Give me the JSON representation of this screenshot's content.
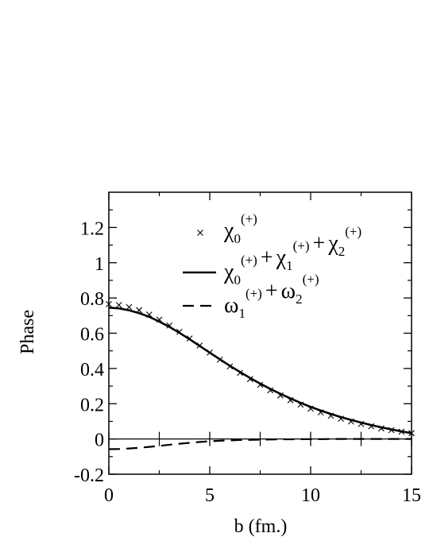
{
  "chart_data": {
    "type": "line",
    "xlabel": "b (fm.)",
    "ylabel": "Phase",
    "xlim": [
      0,
      15
    ],
    "ylim": [
      -0.2,
      1.4
    ],
    "x_ticks": [
      0,
      5,
      10,
      15
    ],
    "x_tick_labels": [
      "0",
      "5",
      "10",
      "15"
    ],
    "y_ticks": [
      -0.2,
      0,
      0.2,
      0.4,
      0.6,
      0.8,
      1,
      1.2
    ],
    "y_tick_labels": [
      "-0.2",
      "0",
      "0.2",
      "0.4",
      "0.6",
      "0.8",
      "1",
      "1.2"
    ],
    "grid": false,
    "zero_line": true,
    "legend_position": "top-right",
    "series": [
      {
        "name": "χ0(+)",
        "legend": [
          {
            "t": "χ",
            "s": "0",
            "p": "(+)"
          }
        ],
        "style": "cross-markers",
        "x": [
          0,
          0.5,
          1,
          1.5,
          2,
          2.5,
          3,
          3.5,
          4,
          4.5,
          5,
          5.5,
          6,
          6.5,
          7,
          7.5,
          8,
          8.5,
          9,
          9.5,
          10,
          10.5,
          11,
          11.5,
          12,
          12.5,
          13,
          13.5,
          14,
          14.5,
          15
        ],
        "y": [
          0.765,
          0.76,
          0.748,
          0.731,
          0.706,
          0.677,
          0.644,
          0.608,
          0.57,
          0.53,
          0.49,
          0.45,
          0.412,
          0.375,
          0.34,
          0.307,
          0.276,
          0.247,
          0.22,
          0.195,
          0.172,
          0.151,
          0.132,
          0.115,
          0.099,
          0.085,
          0.072,
          0.06,
          0.05,
          0.041,
          0.033
        ]
      },
      {
        "name": "χ0(+) + χ1(+) + χ2(+)",
        "legend": [
          {
            "t": "χ",
            "s": "0",
            "p": "(+)"
          },
          {
            "op": "+"
          },
          {
            "t": "χ",
            "s": "1",
            "p": "(+)"
          },
          {
            "op": "+"
          },
          {
            "t": "χ",
            "s": "2",
            "p": "(+)"
          }
        ],
        "style": "solid",
        "x": [
          0,
          0.5,
          1,
          1.5,
          2,
          2.5,
          3,
          3.5,
          4,
          4.5,
          5,
          5.5,
          6,
          6.5,
          7,
          7.5,
          8,
          8.5,
          9,
          9.5,
          10,
          10.5,
          11,
          11.5,
          12,
          12.5,
          13,
          13.5,
          14,
          14.5,
          15
        ],
        "y": [
          0.745,
          0.741,
          0.73,
          0.714,
          0.693,
          0.666,
          0.636,
          0.602,
          0.566,
          0.528,
          0.49,
          0.452,
          0.415,
          0.38,
          0.346,
          0.314,
          0.284,
          0.256,
          0.23,
          0.205,
          0.182,
          0.161,
          0.142,
          0.124,
          0.108,
          0.093,
          0.079,
          0.066,
          0.054,
          0.043,
          0.033
        ]
      },
      {
        "name": "ω1(+) + ω2(+)",
        "legend": [
          {
            "t": "ω",
            "s": "1",
            "p": "(+)"
          },
          {
            "op": "+"
          },
          {
            "t": "ω",
            "s": "2",
            "p": "(+)"
          }
        ],
        "style": "dashed",
        "x": [
          0,
          0.5,
          1,
          1.5,
          2,
          2.5,
          3,
          3.5,
          4,
          4.5,
          5,
          5.5,
          6,
          6.5,
          7,
          7.5,
          8,
          8.5,
          9,
          9.5,
          10,
          10.5,
          11,
          11.5,
          12,
          12.5,
          13,
          13.5,
          14,
          14.5,
          15
        ],
        "y": [
          -0.058,
          -0.057,
          -0.054,
          -0.05,
          -0.045,
          -0.039,
          -0.033,
          -0.027,
          -0.022,
          -0.017,
          -0.013,
          -0.01,
          -0.008,
          -0.006,
          -0.005,
          -0.004,
          -0.003,
          -0.002,
          -0.002,
          -0.001,
          -0.001,
          -0.001,
          0,
          0,
          0,
          0,
          0,
          0,
          0,
          0,
          0
        ]
      }
    ]
  }
}
